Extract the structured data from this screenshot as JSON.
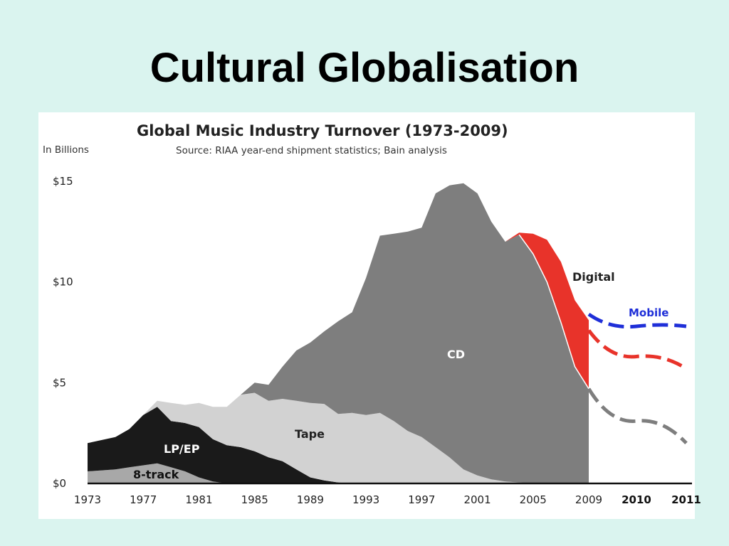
{
  "slide": {
    "title": "Cultural Globalisation"
  },
  "chart_data": {
    "type": "area",
    "title": "Global Music Industry Turnover (1973-2009)",
    "subtitle": "Source: RIAA year-end shipment statistics; Bain analysis",
    "ylabel": "In Billions",
    "ylim": [
      0,
      15
    ],
    "yticks": [
      {
        "v": 0,
        "label": "$0"
      },
      {
        "v": 5,
        "label": "$5"
      },
      {
        "v": 10,
        "label": "$10"
      },
      {
        "v": 15,
        "label": "$15"
      }
    ],
    "xticks": [
      "1973",
      "1977",
      "1981",
      "1985",
      "1989",
      "1993",
      "1997",
      "2001",
      "2005",
      "2009"
    ],
    "xticks_forecast": [
      "2010",
      "2011"
    ],
    "x": [
      1973,
      1975,
      1976,
      1977,
      1978,
      1979,
      1980,
      1981,
      1982,
      1983,
      1984,
      1985,
      1986,
      1987,
      1988,
      1989,
      1990,
      1991,
      1992,
      1993,
      1994,
      1995,
      1996,
      1997,
      1998,
      1999,
      2000,
      2001,
      2002,
      2003,
      2004,
      2005,
      2006,
      2007,
      2008,
      2009
    ],
    "series": [
      {
        "name": "8-track",
        "color": "#a8a8a8",
        "values": [
          0.6,
          0.7,
          0.8,
          0.9,
          1.0,
          0.8,
          0.6,
          0.3,
          0.1,
          0.0,
          0,
          0,
          0,
          0,
          0,
          0,
          0,
          0,
          0,
          0,
          0,
          0,
          0,
          0,
          0,
          0,
          0,
          0,
          0,
          0,
          0,
          0,
          0,
          0,
          0,
          0
        ]
      },
      {
        "name": "LP/EP",
        "color": "#1a1a1a",
        "values": [
          1.4,
          1.6,
          1.9,
          2.5,
          2.8,
          2.3,
          2.4,
          2.5,
          2.1,
          1.9,
          1.8,
          1.6,
          1.3,
          1.1,
          0.7,
          0.3,
          0.15,
          0.05,
          0,
          0,
          0,
          0,
          0,
          0,
          0,
          0,
          0,
          0,
          0,
          0,
          0,
          0,
          0,
          0,
          0,
          0
        ]
      },
      {
        "name": "Tape",
        "color": "#d2d2d2",
        "values": [
          0,
          0,
          0,
          0,
          0.3,
          0.9,
          0.9,
          1.2,
          1.6,
          1.9,
          2.6,
          2.9,
          2.8,
          3.1,
          3.4,
          3.7,
          3.8,
          3.4,
          3.5,
          3.4,
          3.5,
          3.1,
          2.6,
          2.3,
          1.8,
          1.3,
          0.7,
          0.4,
          0.2,
          0.1,
          0.05,
          0,
          0,
          0,
          0,
          0
        ]
      },
      {
        "name": "CD",
        "color": "#7e7e7e",
        "values": [
          0,
          0,
          0,
          0,
          0,
          0,
          0,
          0,
          0,
          0,
          0,
          0.5,
          0.8,
          1.6,
          2.5,
          3.0,
          3.6,
          4.6,
          5.0,
          6.8,
          8.8,
          9.3,
          9.9,
          10.4,
          12.6,
          13.5,
          14.2,
          14.0,
          12.8,
          11.9,
          12.3,
          11.4,
          10.0,
          8.0,
          5.8,
          4.7
        ]
      },
      {
        "name": "Digital",
        "color": "#e8332a",
        "values": [
          0,
          0,
          0,
          0,
          0,
          0,
          0,
          0,
          0,
          0,
          0,
          0,
          0,
          0,
          0,
          0,
          0,
          0,
          0,
          0,
          0,
          0,
          0,
          0,
          0,
          0,
          0,
          0,
          0,
          0,
          0.1,
          1.0,
          2.1,
          3.0,
          3.3,
          3.4
        ]
      }
    ],
    "forecast": [
      {
        "name": "Mobile",
        "color": "#1f2fd8",
        "x": [
          2009,
          2010,
          2011
        ],
        "values": [
          8.4,
          7.8,
          7.8
        ]
      },
      {
        "name": "Digital",
        "color": "#e8332a",
        "x": [
          2009,
          2010,
          2011
        ],
        "values": [
          7.6,
          6.3,
          5.7
        ]
      },
      {
        "name": "CD",
        "color": "#7e7e7e",
        "x": [
          2009,
          2010,
          2011
        ],
        "values": [
          4.7,
          3.1,
          2.0
        ]
      }
    ],
    "legend": "inline labels",
    "grid": false
  }
}
